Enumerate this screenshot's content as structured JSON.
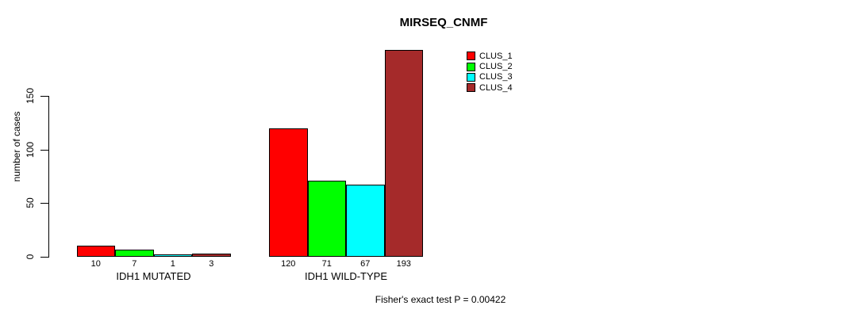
{
  "chart_data": {
    "type": "bar",
    "title": "MIRSEQ_CNMF",
    "ylabel": "number of cases",
    "xlabel": "",
    "categories": [
      "IDH1 MUTATED",
      "IDH1 WILD-TYPE"
    ],
    "series": [
      {
        "name": "CLUS_1",
        "color": "#FF0000",
        "values": [
          10,
          120
        ]
      },
      {
        "name": "CLUS_2",
        "color": "#00FF00",
        "values": [
          7,
          71
        ]
      },
      {
        "name": "CLUS_3",
        "color": "#00FFFF",
        "values": [
          1,
          67
        ]
      },
      {
        "name": "CLUS_4",
        "color": "#A52A2A",
        "values": [
          3,
          193
        ]
      }
    ],
    "bar_value_labels": {
      "IDH1 MUTATED": [
        "10",
        "7",
        "1",
        "3"
      ],
      "IDH1 WILD-TYPE": [
        "120",
        "71",
        "67",
        "193"
      ]
    },
    "yticks": [
      "0",
      "50",
      "100",
      "150"
    ],
    "ylim": [
      0,
      200
    ],
    "grid": false,
    "legend_position": "top-right",
    "annotation": "Fisher's exact test P = 0.00422"
  }
}
